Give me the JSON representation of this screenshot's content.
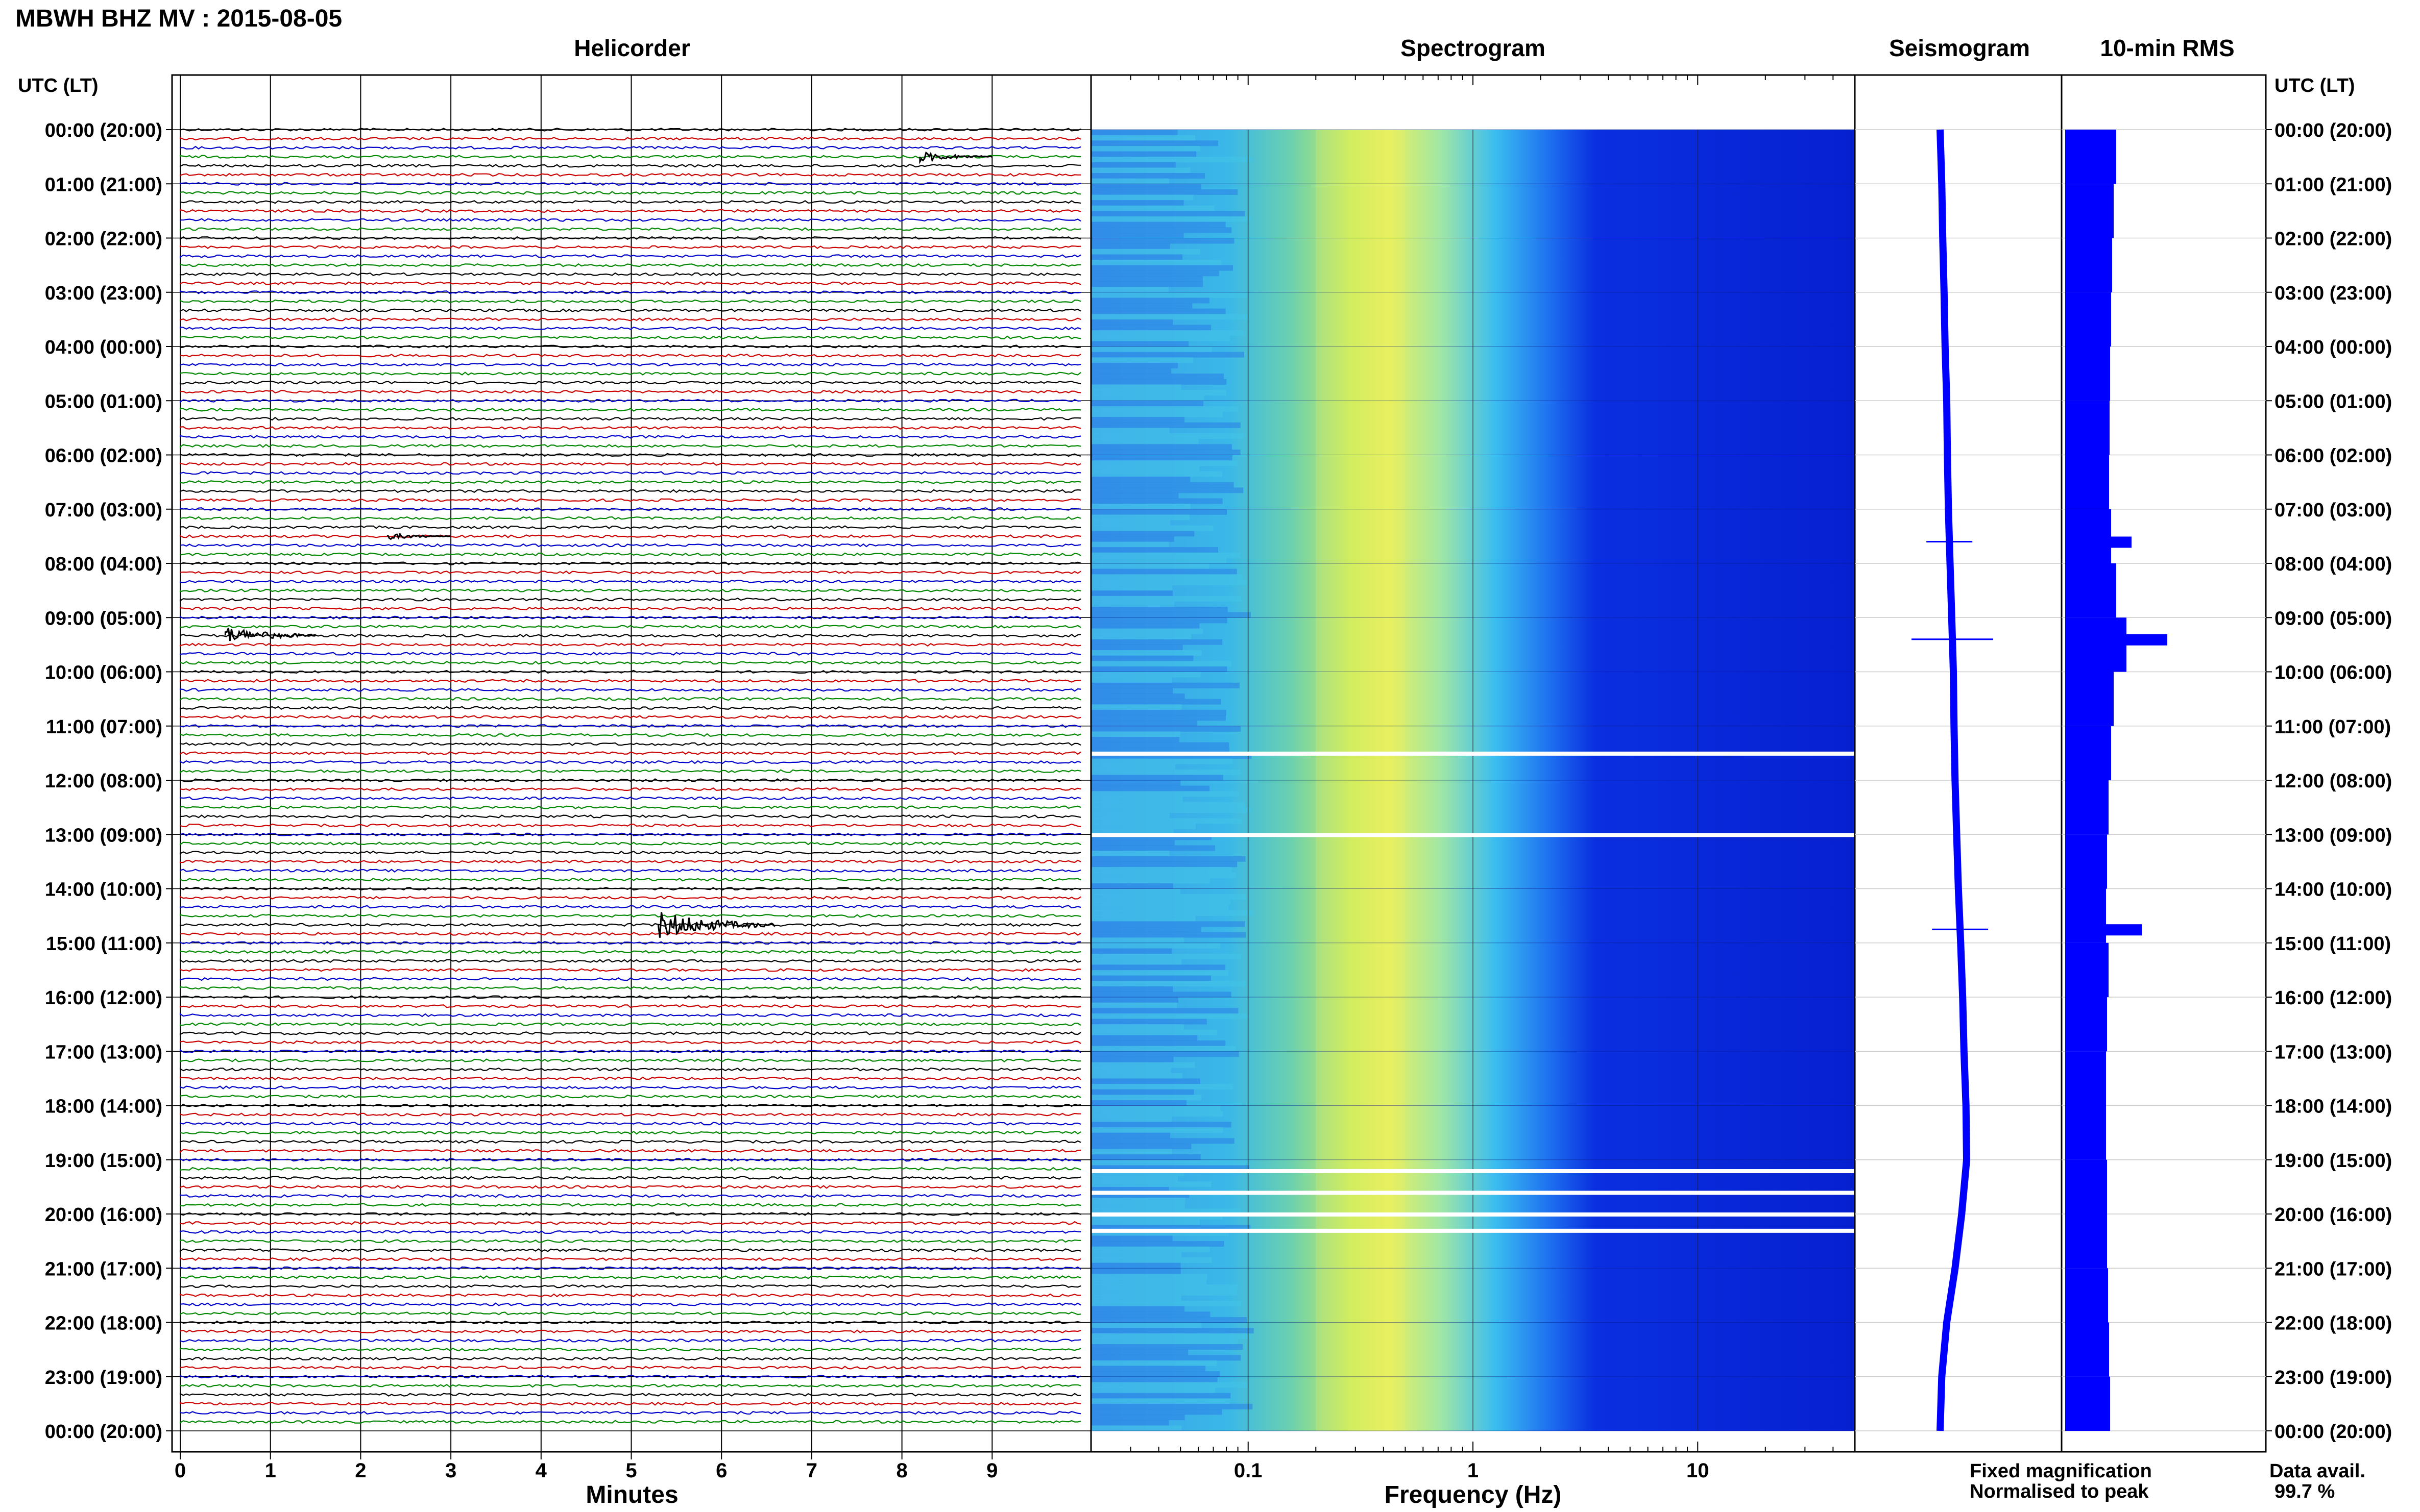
{
  "title": "MBWH BHZ MV : 2015-08-05",
  "panel_titles": {
    "helicorder": "Helicorder",
    "spectrogram": "Spectrogram",
    "seismogram": "Seismogram",
    "rms": "10-min RMS"
  },
  "time_axis_title": "UTC (LT)",
  "time_labels": [
    "00:00 (20:00)",
    "01:00 (21:00)",
    "02:00 (22:00)",
    "03:00 (23:00)",
    "04:00 (00:00)",
    "05:00 (01:00)",
    "06:00 (02:00)",
    "07:00 (03:00)",
    "08:00 (04:00)",
    "09:00 (05:00)",
    "10:00 (06:00)",
    "11:00 (07:00)",
    "12:00 (08:00)",
    "13:00 (09:00)",
    "14:00 (10:00)",
    "15:00 (11:00)",
    "16:00 (12:00)",
    "17:00 (13:00)",
    "18:00 (14:00)",
    "19:00 (15:00)",
    "20:00 (16:00)",
    "21:00 (17:00)",
    "22:00 (18:00)",
    "23:00 (19:00)",
    "00:00 (20:00)"
  ],
  "minutes_ticks": [
    "0",
    "1",
    "2",
    "3",
    "4",
    "5",
    "6",
    "7",
    "8",
    "9"
  ],
  "minutes_label": "Minutes",
  "freq_ticks": [
    "0.1",
    "1",
    "10"
  ],
  "freq_label": "Frequency (Hz)",
  "legend": {
    "fixed": "Fixed magnification",
    "normalised": "Normalised to peak",
    "fixed_color": "#0000ff",
    "normalised_color": "#ff0000"
  },
  "data_avail_label": "Data avail.",
  "data_avail_value": "99.7 %",
  "trace_colors": [
    "#000000",
    "#cc0000",
    "#0000cc",
    "#008800"
  ],
  "chart_data": [
    {
      "type": "line",
      "name": "helicorder",
      "x_range_minutes": [
        0,
        10
      ],
      "rows_per_hour": 6,
      "hours": 24,
      "events": [
        {
          "hour": 0.5,
          "minute": 8.2,
          "amplitude": 1.5
        },
        {
          "hour": 7.5,
          "minute": 2.3,
          "amplitude": 1.0
        },
        {
          "hour": 9.33,
          "minute": 0.5,
          "amplitude": 2.5
        },
        {
          "hour": 14.67,
          "minute": 5.3,
          "amplitude": 4.0
        }
      ]
    },
    {
      "type": "heatmap",
      "name": "spectrogram",
      "x_scale": "log",
      "xlim_hz": [
        0.02,
        50
      ],
      "peak_band_hz": [
        0.2,
        0.5
      ],
      "data_gaps_utc_hours": [
        11.5,
        13.0,
        19.2,
        19.6,
        20.0,
        20.3
      ]
    },
    {
      "type": "line",
      "name": "seismogram",
      "hourly_offset": [
        0,
        0.05,
        0.08,
        0.12,
        0.15,
        0.2,
        0.22,
        0.25,
        0.3,
        0.35,
        0.4,
        0.42,
        0.45,
        0.5,
        0.55,
        0.62,
        0.68,
        0.72,
        0.78,
        0.8,
        0.65,
        0.45,
        0.2,
        0.05,
        0.0
      ]
    },
    {
      "type": "bar",
      "name": "10-min RMS",
      "hourly_levels": [
        1.0,
        0.95,
        0.92,
        0.9,
        0.88,
        0.87,
        0.86,
        0.9,
        1.0,
        1.2,
        0.95,
        0.9,
        0.85,
        0.82,
        0.8,
        0.85,
        0.82,
        0.8,
        0.8,
        0.82,
        0.82,
        0.84,
        0.86,
        0.88
      ],
      "spikes": [
        {
          "hour": 7.6,
          "level": 1.3
        },
        {
          "hour": 9.4,
          "level": 2.0
        },
        {
          "hour": 14.75,
          "level": 1.5
        }
      ]
    }
  ]
}
